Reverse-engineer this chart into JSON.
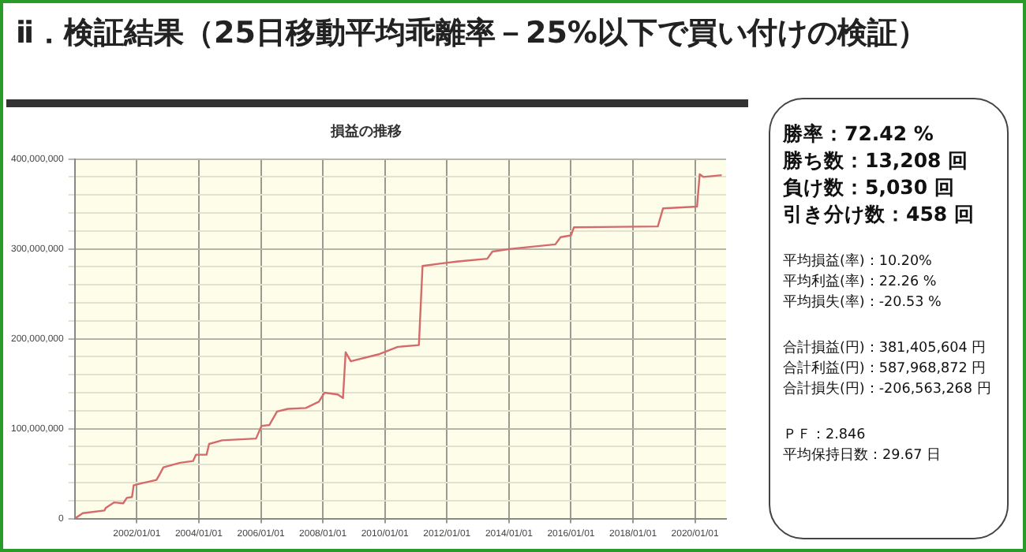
{
  "chart_data": {
    "type": "line",
    "title": "ⅱ．検証結果（25日移動平均乖離率－25%以下で買い付けの検証）",
    "subtitle": "損益の推移",
    "x": [
      "2000-01-01",
      "2000-04-05",
      "2000-12-15",
      "2001-01-01",
      "2001-04-10",
      "2001-07-25",
      "2001-09-05",
      "2001-11-05",
      "2001-11-25",
      "2002-02-15",
      "2002-08-20",
      "2002-09-20",
      "2002-11-10",
      "2003-05-25",
      "2003-10-25",
      "2003-11-28",
      "2004-04-01",
      "2004-05-01",
      "2004-10-01",
      "2005-11-05",
      "2006-01-08",
      "2006-04-10",
      "2006-07-10",
      "2006-11-15",
      "2007-06-15",
      "2007-11-15",
      "2008-01-20",
      "2008-06-25",
      "2008-08-25",
      "2008-09-25",
      "2008-11-25",
      "2009-10-30",
      "2010-06-01",
      "2011-02-05",
      "2011-03-20",
      "2011-11-10",
      "2012-05-15",
      "2013-04-20",
      "2013-06-20",
      "2014-01-20",
      "2015-07-01",
      "2015-09-01",
      "2016-01-01",
      "2016-02-05",
      "2018-10-20",
      "2018-12-20",
      "2020-01-25",
      "2020-02-25",
      "2020-04-10",
      "2020-11-10"
    ],
    "values": [
      0,
      6000000,
      9000000,
      12000000,
      18000000,
      17000000,
      23000000,
      24000000,
      37000000,
      39000000,
      43000000,
      48000000,
      57000000,
      62000000,
      64000000,
      71000000,
      71000000,
      83000000,
      87000000,
      89000000,
      103000000,
      104000000,
      119000000,
      122000000,
      123000000,
      130000000,
      140000000,
      138000000,
      134000000,
      185000000,
      175000000,
      183000000,
      191000000,
      193000000,
      281000000,
      284000000,
      286000000,
      289000000,
      297000000,
      300000000,
      305000000,
      313000000,
      315000000,
      324000000,
      325000000,
      345000000,
      347000000,
      383000000,
      380000000,
      382000000
    ],
    "color": "#d46a6a",
    "marker": "none",
    "line_style": "solid",
    "grid": true,
    "legend": false,
    "xlim": [
      "2000-01-01",
      "2021-01-01"
    ],
    "xticks": [
      {
        "value": "2002-01-01",
        "label": "2002/01/01"
      },
      {
        "value": "2004-01-01",
        "label": "2004/01/01"
      },
      {
        "value": "2006-01-01",
        "label": "2006/01/01"
      },
      {
        "value": "2008-01-01",
        "label": "2008/01/01"
      },
      {
        "value": "2010-01-01",
        "label": "2010/01/01"
      },
      {
        "value": "2012-01-01",
        "label": "2012/01/01"
      },
      {
        "value": "2014-01-01",
        "label": "2014/01/01"
      },
      {
        "value": "2016-01-01",
        "label": "2016/01/01"
      },
      {
        "value": "2018-01-01",
        "label": "2018/01/01"
      },
      {
        "value": "2020-01-01",
        "label": "2020/01/01"
      }
    ],
    "ylim": [
      0,
      400000000
    ],
    "yticks": [
      0,
      {
        "value": 20000000,
        "label": null
      },
      {
        "value": 40000000,
        "label": null
      },
      {
        "value": 60000000,
        "label": null
      },
      {
        "value": 80000000,
        "label": null
      },
      {
        "value": 100000000,
        "label": "100,000,000"
      },
      {
        "value": 120000000,
        "label": null
      },
      {
        "value": 140000000,
        "label": null
      },
      {
        "value": 160000000,
        "label": null
      },
      {
        "value": 180000000,
        "label": null
      },
      {
        "value": 200000000,
        "label": "200,000,000"
      },
      {
        "value": 220000000,
        "label": null
      },
      {
        "value": 240000000,
        "label": null
      },
      {
        "value": 260000000,
        "label": null
      },
      {
        "value": 280000000,
        "label": null
      },
      {
        "value": 300000000,
        "label": "300,000,000"
      },
      {
        "value": 320000000,
        "label": null
      },
      {
        "value": 340000000,
        "label": null
      },
      {
        "value": 360000000,
        "label": null
      },
      {
        "value": 380000000,
        "label": null
      },
      {
        "value": 400000000,
        "label": "400,000,000"
      }
    ],
    "annotations": [
      "勝率：72.42 %",
      "勝ち数：13,208 回",
      "負け数：5,030 回",
      "引き分け数：458 回",
      "平均損益(率)：10.20%",
      "平均利益(率)：22.26 %",
      "平均損失(率)：-20.53 %",
      "合計損益(円)：381,405,604 円",
      "合計利益(円)：587,968,872 円",
      "合計損失(円)：-206,563,268 円",
      "ＰＦ：2.846",
      "平均保持日数：29.67 日"
    ]
  }
}
